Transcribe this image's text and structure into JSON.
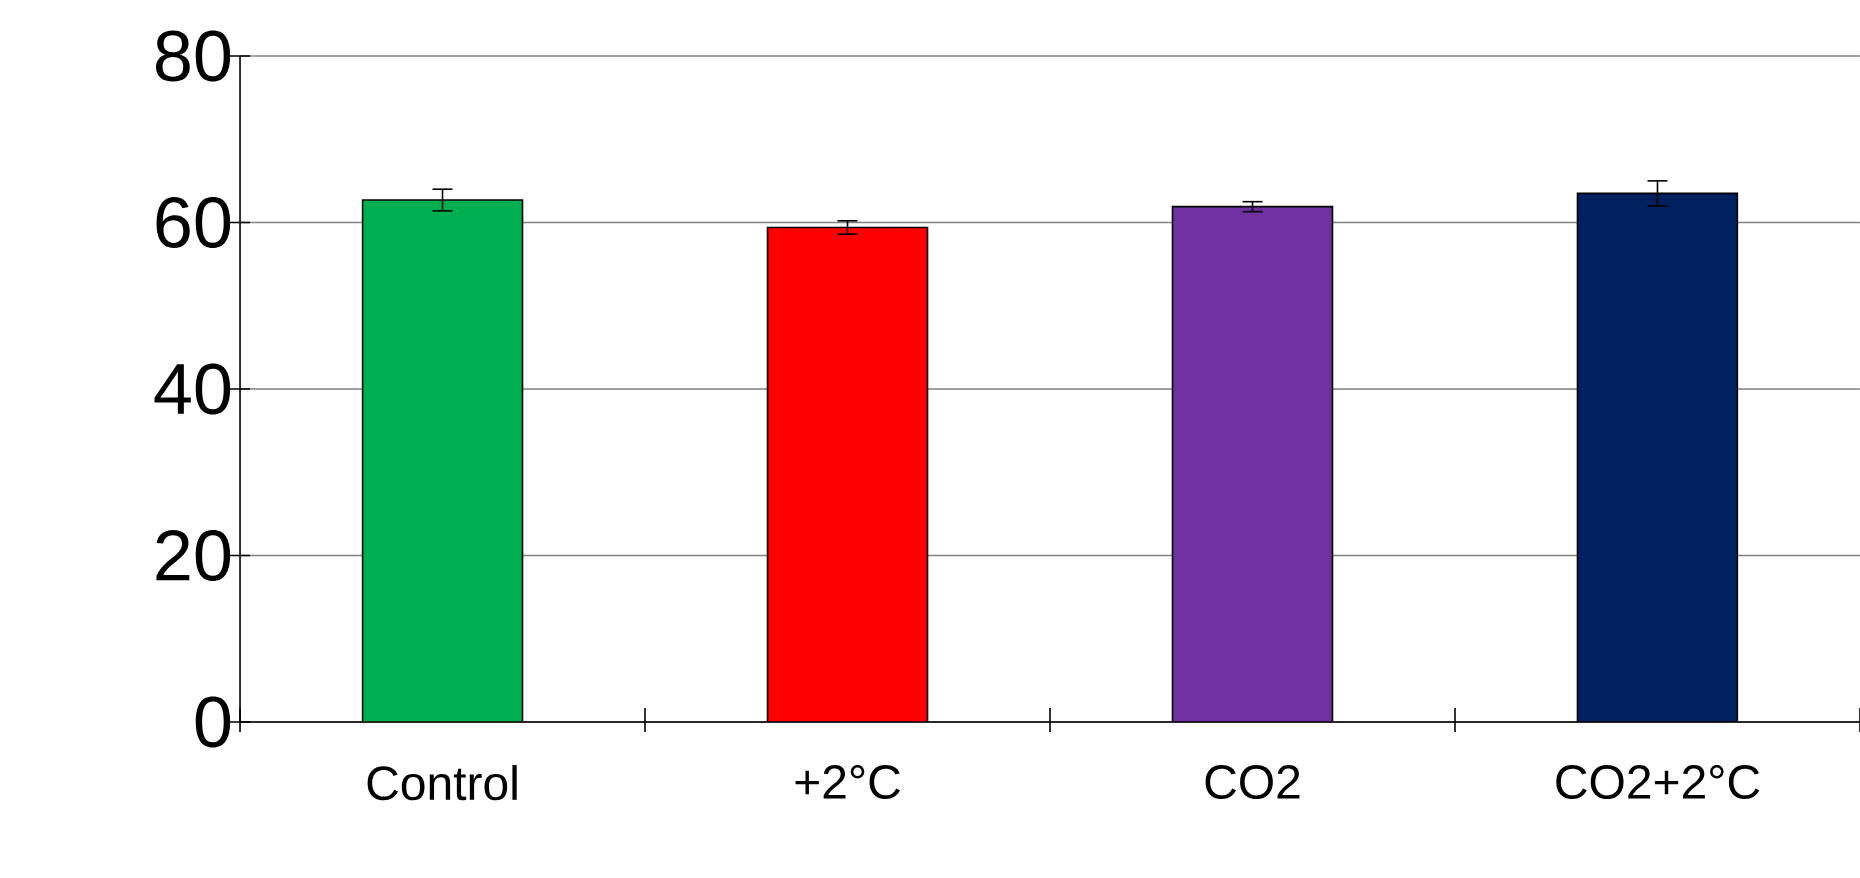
{
  "chart_data": {
    "type": "bar",
    "categories": [
      "Control",
      "+2°C",
      "CO2",
      "CO2+2°C"
    ],
    "values": [
      62.7,
      59.4,
      61.9,
      63.5
    ],
    "errors": [
      1.3,
      0.8,
      0.6,
      1.5
    ],
    "colors": [
      "#00b050",
      "#ff0000",
      "#7030a0",
      "#002060"
    ],
    "ylim": [
      0,
      80
    ],
    "yticks": [
      0,
      20,
      40,
      60,
      80
    ],
    "grid": "y"
  }
}
